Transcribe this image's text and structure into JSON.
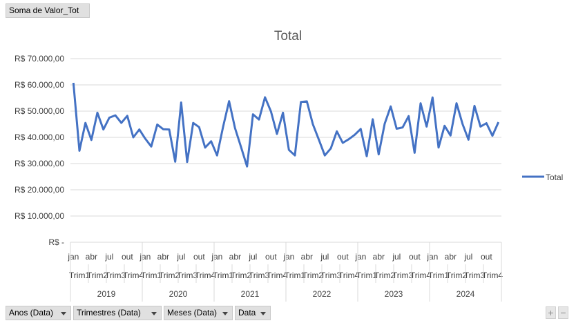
{
  "value_field": "Soma de Valor_Tot",
  "filters": [
    "Anos (Data)",
    "Trimestres (Data)",
    "Meses (Data)",
    "Data"
  ],
  "zoom_in": "+",
  "zoom_out": "−",
  "colors": {
    "series": "#4472c4",
    "grid": "#d9d9d9",
    "text": "#595959",
    "axis_text": "#404040"
  },
  "chart_data": {
    "type": "line",
    "title": "Total",
    "ylim": [
      0,
      70000
    ],
    "y_ticks": [
      0,
      10000,
      20000,
      30000,
      40000,
      50000,
      60000,
      70000
    ],
    "y_tick_labels": [
      "R$ -",
      "R$ 10.000,00",
      "R$ 20.000,00",
      "R$ 30.000,00",
      "R$ 40.000,00",
      "R$ 50.000,00",
      "R$ 60.000,00",
      "R$ 70.000,00"
    ],
    "legend": {
      "position": "right",
      "label": "Total"
    },
    "years": [
      "2019",
      "2020",
      "2021",
      "2022",
      "2023",
      "2024"
    ],
    "quarters": [
      "Trim1",
      "Trim2",
      "Trim3",
      "Trim4"
    ],
    "month_tick_labels": [
      "jan",
      "abr",
      "jul",
      "out"
    ],
    "series": [
      {
        "name": "Total",
        "values": [
          60800,
          34900,
          45500,
          39000,
          49400,
          43000,
          47500,
          48400,
          45500,
          48200,
          40000,
          43000,
          39500,
          36500,
          44900,
          43100,
          43000,
          30700,
          53300,
          30600,
          45500,
          43900,
          36100,
          38500,
          33100,
          44000,
          53800,
          43500,
          36300,
          28900,
          48800,
          46800,
          55300,
          49900,
          41300,
          49400,
          35200,
          33100,
          53500,
          53700,
          45000,
          39100,
          33100,
          35800,
          42300,
          37900,
          39300,
          41000,
          43200,
          32800,
          46900,
          33500,
          45200,
          51800,
          43300,
          43800,
          48100,
          34100,
          53000,
          44100,
          55200,
          36100,
          44400,
          40700,
          53000,
          45100,
          39100,
          52000,
          44100,
          45400,
          40600,
          45800
        ]
      }
    ]
  }
}
